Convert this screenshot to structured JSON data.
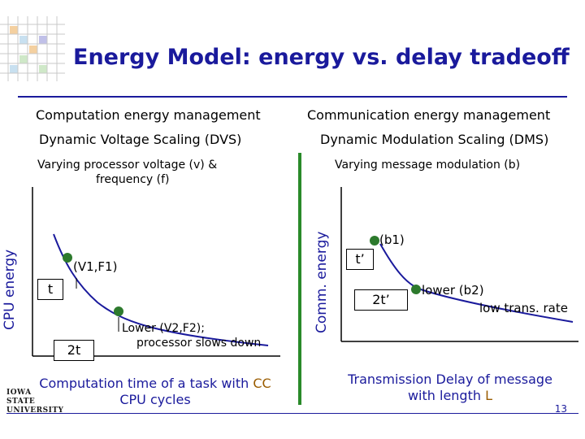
{
  "slide": {
    "title": "Energy Model: energy vs. delay tradeoff",
    "page_number": "13",
    "logo_line1": "IOWA STATE",
    "logo_line2": "UNIVERSITY"
  },
  "left": {
    "heading": "Computation energy management",
    "subheading": "Dynamic Voltage Scaling (DVS)",
    "description_line1": "Varying processor voltage (v) &",
    "description_line2": "frequency (f)",
    "y_axis_label": "CPU energy",
    "point1_label": "(V1,F1)",
    "tick_t": "t",
    "tick_2t": "2t",
    "point2_line1": "Lower (V2,F2);",
    "point2_line2": "processor slows down",
    "caption_part1": "Computation time of a task with",
    "caption_highlight": "CC",
    "caption_line2": "CPU cycles"
  },
  "right": {
    "heading": "Communication energy management",
    "subheading": "Dynamic Modulation Scaling (DMS)",
    "description": "Varying message modulation (b)",
    "y_axis_label": "Comm. energy",
    "point1_label": "(b1)",
    "tick_t": "t’",
    "tick_2t": "2t’",
    "point2_line1": "lower (b2)",
    "point2_line2": "low trans. rate",
    "caption_line1": "Transmission Delay of message",
    "caption_part2": "with length",
    "caption_highlight": "L"
  },
  "colors": {
    "title": "#1a1a9c",
    "curve": "#1a1a9c",
    "dot": "#2d7a2d",
    "divider": "#2a8a2a",
    "highlight": "#9a5c00"
  }
}
